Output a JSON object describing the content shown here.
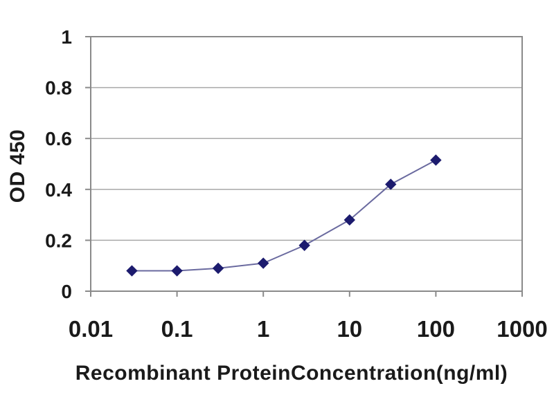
{
  "chart_data": {
    "type": "line",
    "xlabel": "Recombinant ProteinConcentration(ng/ml)",
    "ylabel": "OD 450",
    "x_scale": "log",
    "xlim": [
      0.01,
      1000
    ],
    "ylim": [
      0,
      1
    ],
    "x_tick_values": [
      0.01,
      0.1,
      1,
      10,
      100,
      1000
    ],
    "x_tick_labels": [
      "0.01",
      "0.1",
      "1",
      "10",
      "100",
      "1000"
    ],
    "y_tick_values": [
      0,
      0.2,
      0.4,
      0.6,
      0.8,
      1
    ],
    "y_tick_labels": [
      "0",
      "0.2",
      "0.4",
      "0.6",
      "0.8",
      "1"
    ],
    "grid": "horizontal",
    "legend": "none",
    "series": [
      {
        "name": "OD 450",
        "marker": "diamond",
        "x": [
          0.03,
          0.1,
          0.3,
          1,
          3,
          10,
          30,
          100
        ],
        "values": [
          0.08,
          0.08,
          0.09,
          0.11,
          0.18,
          0.28,
          0.42,
          0.515
        ]
      }
    ],
    "colors": {
      "line": "#6a6a9f",
      "marker": "#1c1b6e",
      "grid": "#a8a8a8",
      "axis": "#8a8a8a",
      "text": "#1a1a1a",
      "background": "#ffffff"
    }
  }
}
